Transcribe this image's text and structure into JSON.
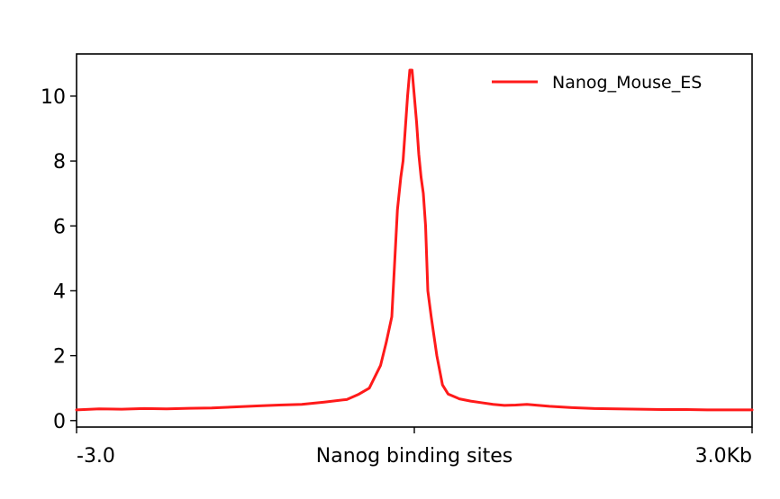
{
  "chart_data": {
    "type": "line",
    "title": "",
    "xlabel": "",
    "ylabel": "",
    "xlim": [
      -3.0,
      3.0
    ],
    "ylim": [
      -0.2,
      11.3
    ],
    "grid": false,
    "legend_position": "top-right",
    "x_ticks": [
      {
        "value": -3.0,
        "label": "-3.0"
      },
      {
        "value": 0.0,
        "label": "Nanog binding sites"
      },
      {
        "value": 3.0,
        "label": "3.0Kb"
      }
    ],
    "y_ticks": [
      {
        "value": 0,
        "label": "0"
      },
      {
        "value": 2,
        "label": "2"
      },
      {
        "value": 4,
        "label": "4"
      },
      {
        "value": 6,
        "label": "6"
      },
      {
        "value": 8,
        "label": "8"
      },
      {
        "value": 10,
        "label": "10"
      }
    ],
    "series": [
      {
        "name": "Nanog_Mouse_ES",
        "color": "#ff1a1a",
        "x": [
          -3.0,
          -2.8,
          -2.6,
          -2.4,
          -2.2,
          -2.0,
          -1.8,
          -1.6,
          -1.4,
          -1.2,
          -1.0,
          -0.8,
          -0.6,
          -0.5,
          -0.4,
          -0.3,
          -0.25,
          -0.2,
          -0.15,
          -0.12,
          -0.1,
          -0.08,
          -0.06,
          -0.04,
          -0.02,
          0.0,
          0.02,
          0.04,
          0.06,
          0.08,
          0.1,
          0.12,
          0.15,
          0.2,
          0.25,
          0.3,
          0.4,
          0.5,
          0.6,
          0.7,
          0.8,
          0.9,
          1.0,
          1.2,
          1.4,
          1.6,
          1.8,
          2.0,
          2.2,
          2.4,
          2.6,
          2.8,
          3.0
        ],
        "y": [
          0.33,
          0.36,
          0.35,
          0.37,
          0.36,
          0.38,
          0.39,
          0.42,
          0.45,
          0.48,
          0.5,
          0.57,
          0.65,
          0.8,
          1.0,
          1.7,
          2.4,
          3.2,
          6.5,
          7.5,
          8.0,
          9.0,
          10.0,
          10.8,
          10.8,
          10.0,
          9.2,
          8.2,
          7.5,
          7.0,
          6.0,
          4.0,
          3.2,
          2.0,
          1.1,
          0.82,
          0.67,
          0.6,
          0.55,
          0.5,
          0.47,
          0.48,
          0.5,
          0.44,
          0.4,
          0.37,
          0.36,
          0.35,
          0.34,
          0.34,
          0.33,
          0.33,
          0.33
        ]
      }
    ]
  }
}
